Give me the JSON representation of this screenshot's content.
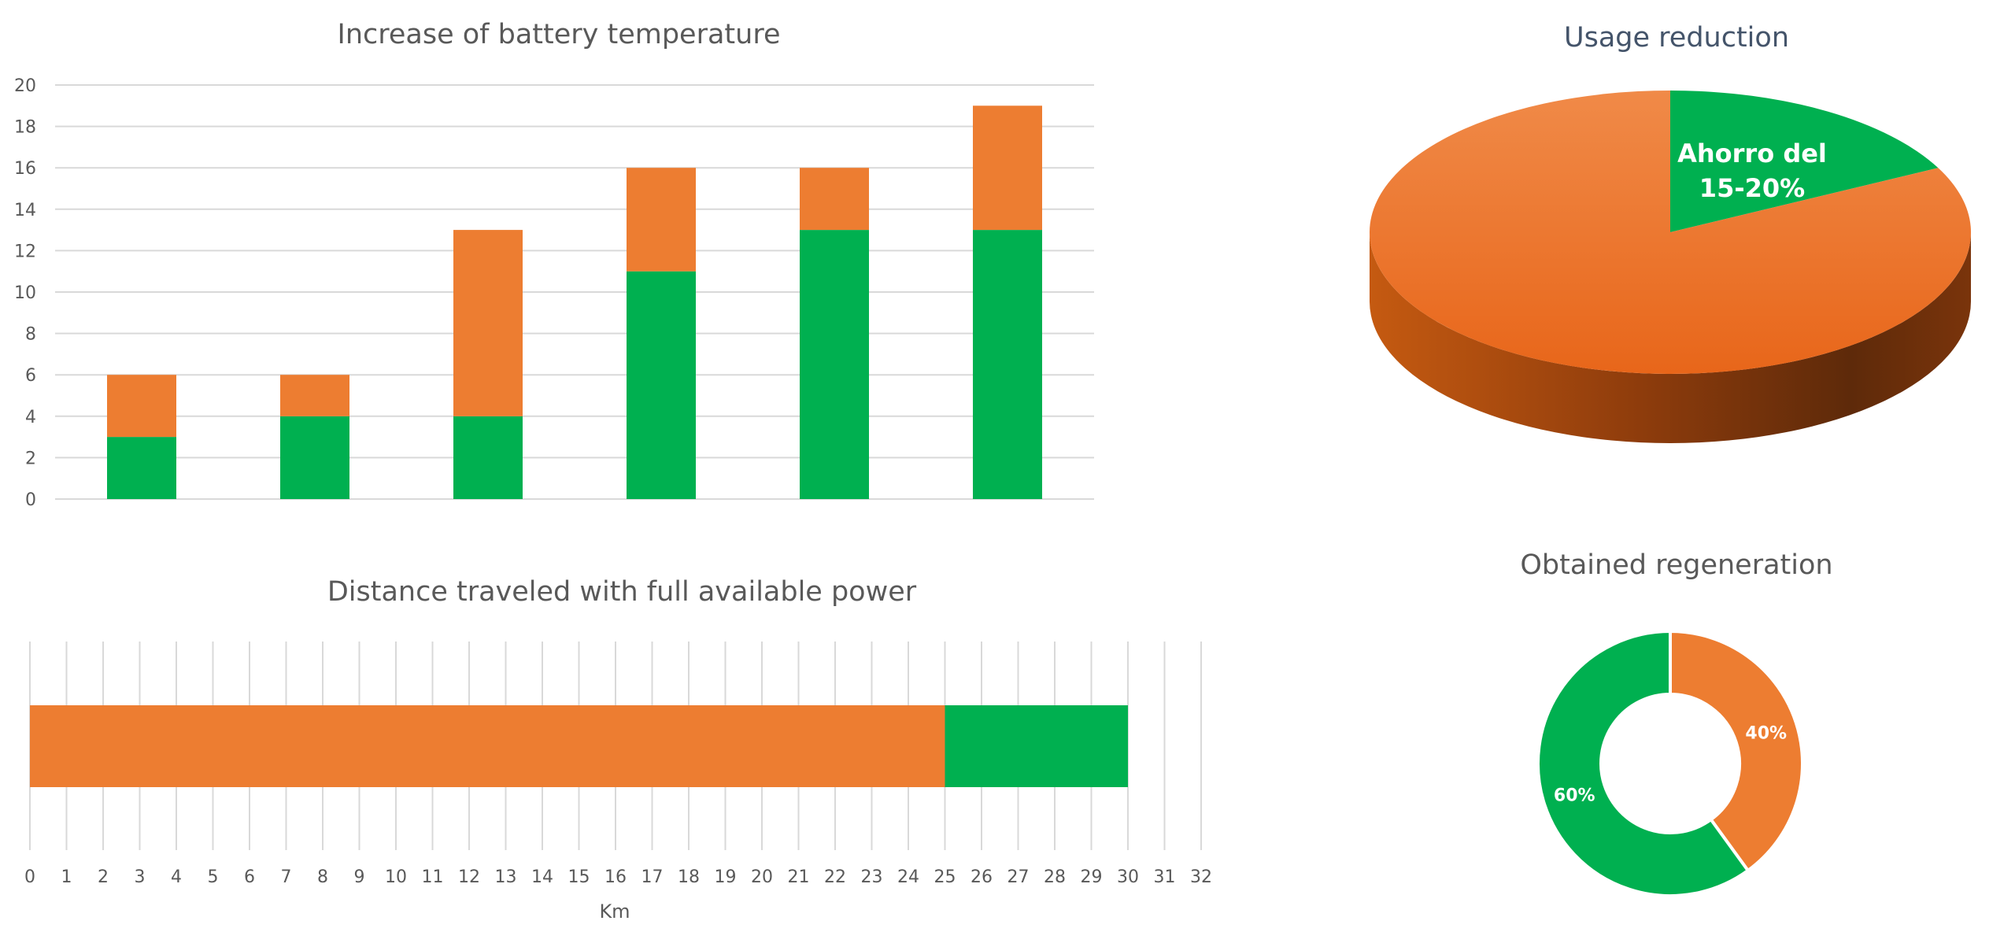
{
  "colors": {
    "orange": "#ED7D31",
    "green": "#00B050",
    "grid": "#d9d9d9",
    "text": "#595959",
    "title_blue": "#44546a"
  },
  "chart_data": [
    {
      "type": "bar",
      "stacked": true,
      "title": "Increase of battery temperature",
      "categories": [
        "",
        "",
        "",
        "",
        "",
        ""
      ],
      "series": [
        {
          "values": [
            3,
            4,
            4,
            11,
            13,
            13
          ],
          "color": "#00B050"
        },
        {
          "values": [
            3,
            2,
            9,
            5,
            3,
            6
          ],
          "color": "#ED7D31"
        }
      ],
      "ylim": [
        0,
        20
      ],
      "yticks": [
        "0",
        "2",
        "4",
        "6",
        "8",
        "10",
        "12",
        "14",
        "16",
        "18",
        "20"
      ],
      "grid": true
    },
    {
      "type": "bar",
      "orientation": "horizontal",
      "stacked": true,
      "title": "Distance traveled with full available power",
      "xlabel": "Km",
      "series": [
        {
          "values": [
            25
          ],
          "color": "#ED7D31"
        },
        {
          "values": [
            5
          ],
          "color": "#00B050"
        }
      ],
      "xlim": [
        0,
        32
      ],
      "xticks": [
        "0",
        "1",
        "2",
        "3",
        "4",
        "5",
        "6",
        "7",
        "8",
        "9",
        "10",
        "11",
        "12",
        "13",
        "14",
        "15",
        "16",
        "17",
        "18",
        "19",
        "20",
        "21",
        "22",
        "23",
        "24",
        "25",
        "26",
        "27",
        "28",
        "29",
        "30",
        "31",
        "32"
      ],
      "grid": true
    },
    {
      "type": "pie",
      "style": "3d",
      "title": "Usage reduction",
      "slices": [
        {
          "label": "Ahorro del 15-20%",
          "value": 17.5,
          "color": "#00B050"
        },
        {
          "value": 82.5,
          "color": "#ED7D31"
        }
      ],
      "label_lines": [
        "Ahorro del",
        "15-20%"
      ]
    },
    {
      "type": "pie",
      "style": "donut",
      "title": "Obtained regeneration",
      "slices": [
        {
          "label": "40%",
          "value": 40,
          "color": "#ED7D31"
        },
        {
          "label": "60%",
          "value": 60,
          "color": "#00B050"
        }
      ]
    }
  ]
}
